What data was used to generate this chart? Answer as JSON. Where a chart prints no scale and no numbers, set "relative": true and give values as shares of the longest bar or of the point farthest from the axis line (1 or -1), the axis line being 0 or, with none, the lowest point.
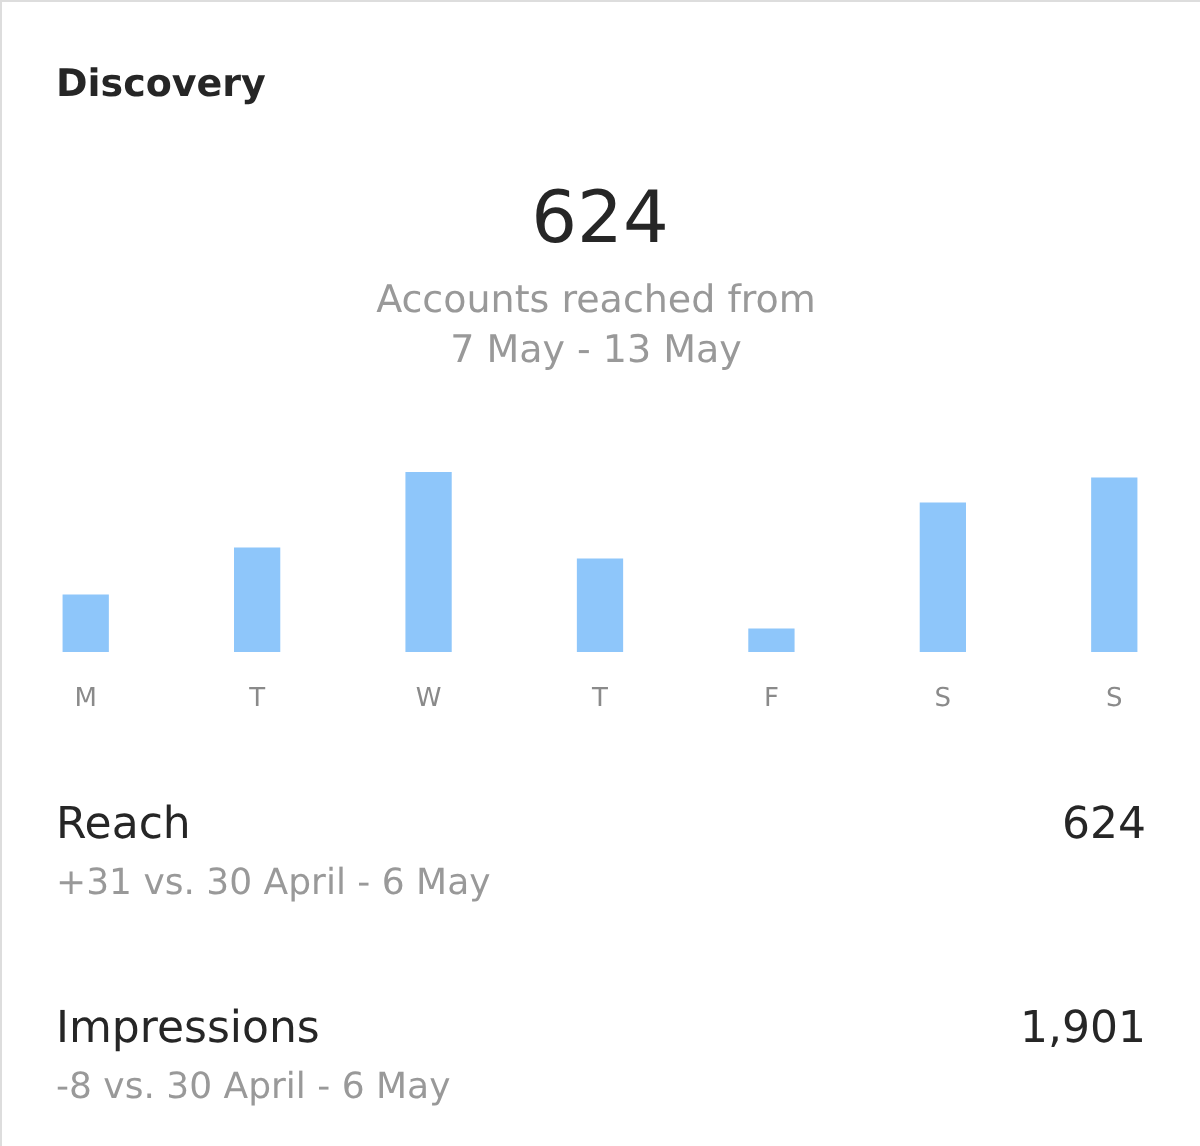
{
  "chart_data": {
    "type": "bar",
    "title": "Discovery",
    "subtitle": "Accounts reached from\n7 May - 13 May",
    "categories": [
      "M",
      "T",
      "W",
      "T",
      "F",
      "S",
      "S"
    ],
    "values": [
      0.32,
      0.58,
      1,
      0.52,
      0.13,
      0.83,
      0.97
    ],
    "color": "#8ec6fa",
    "relative": true,
    "annotations": [
      "624",
      "Reach",
      "624",
      "+31 vs. 30 April - 6 May",
      "Impressions",
      "1,901",
      "-8 vs. 30 April - 6 May"
    ]
  }
}
